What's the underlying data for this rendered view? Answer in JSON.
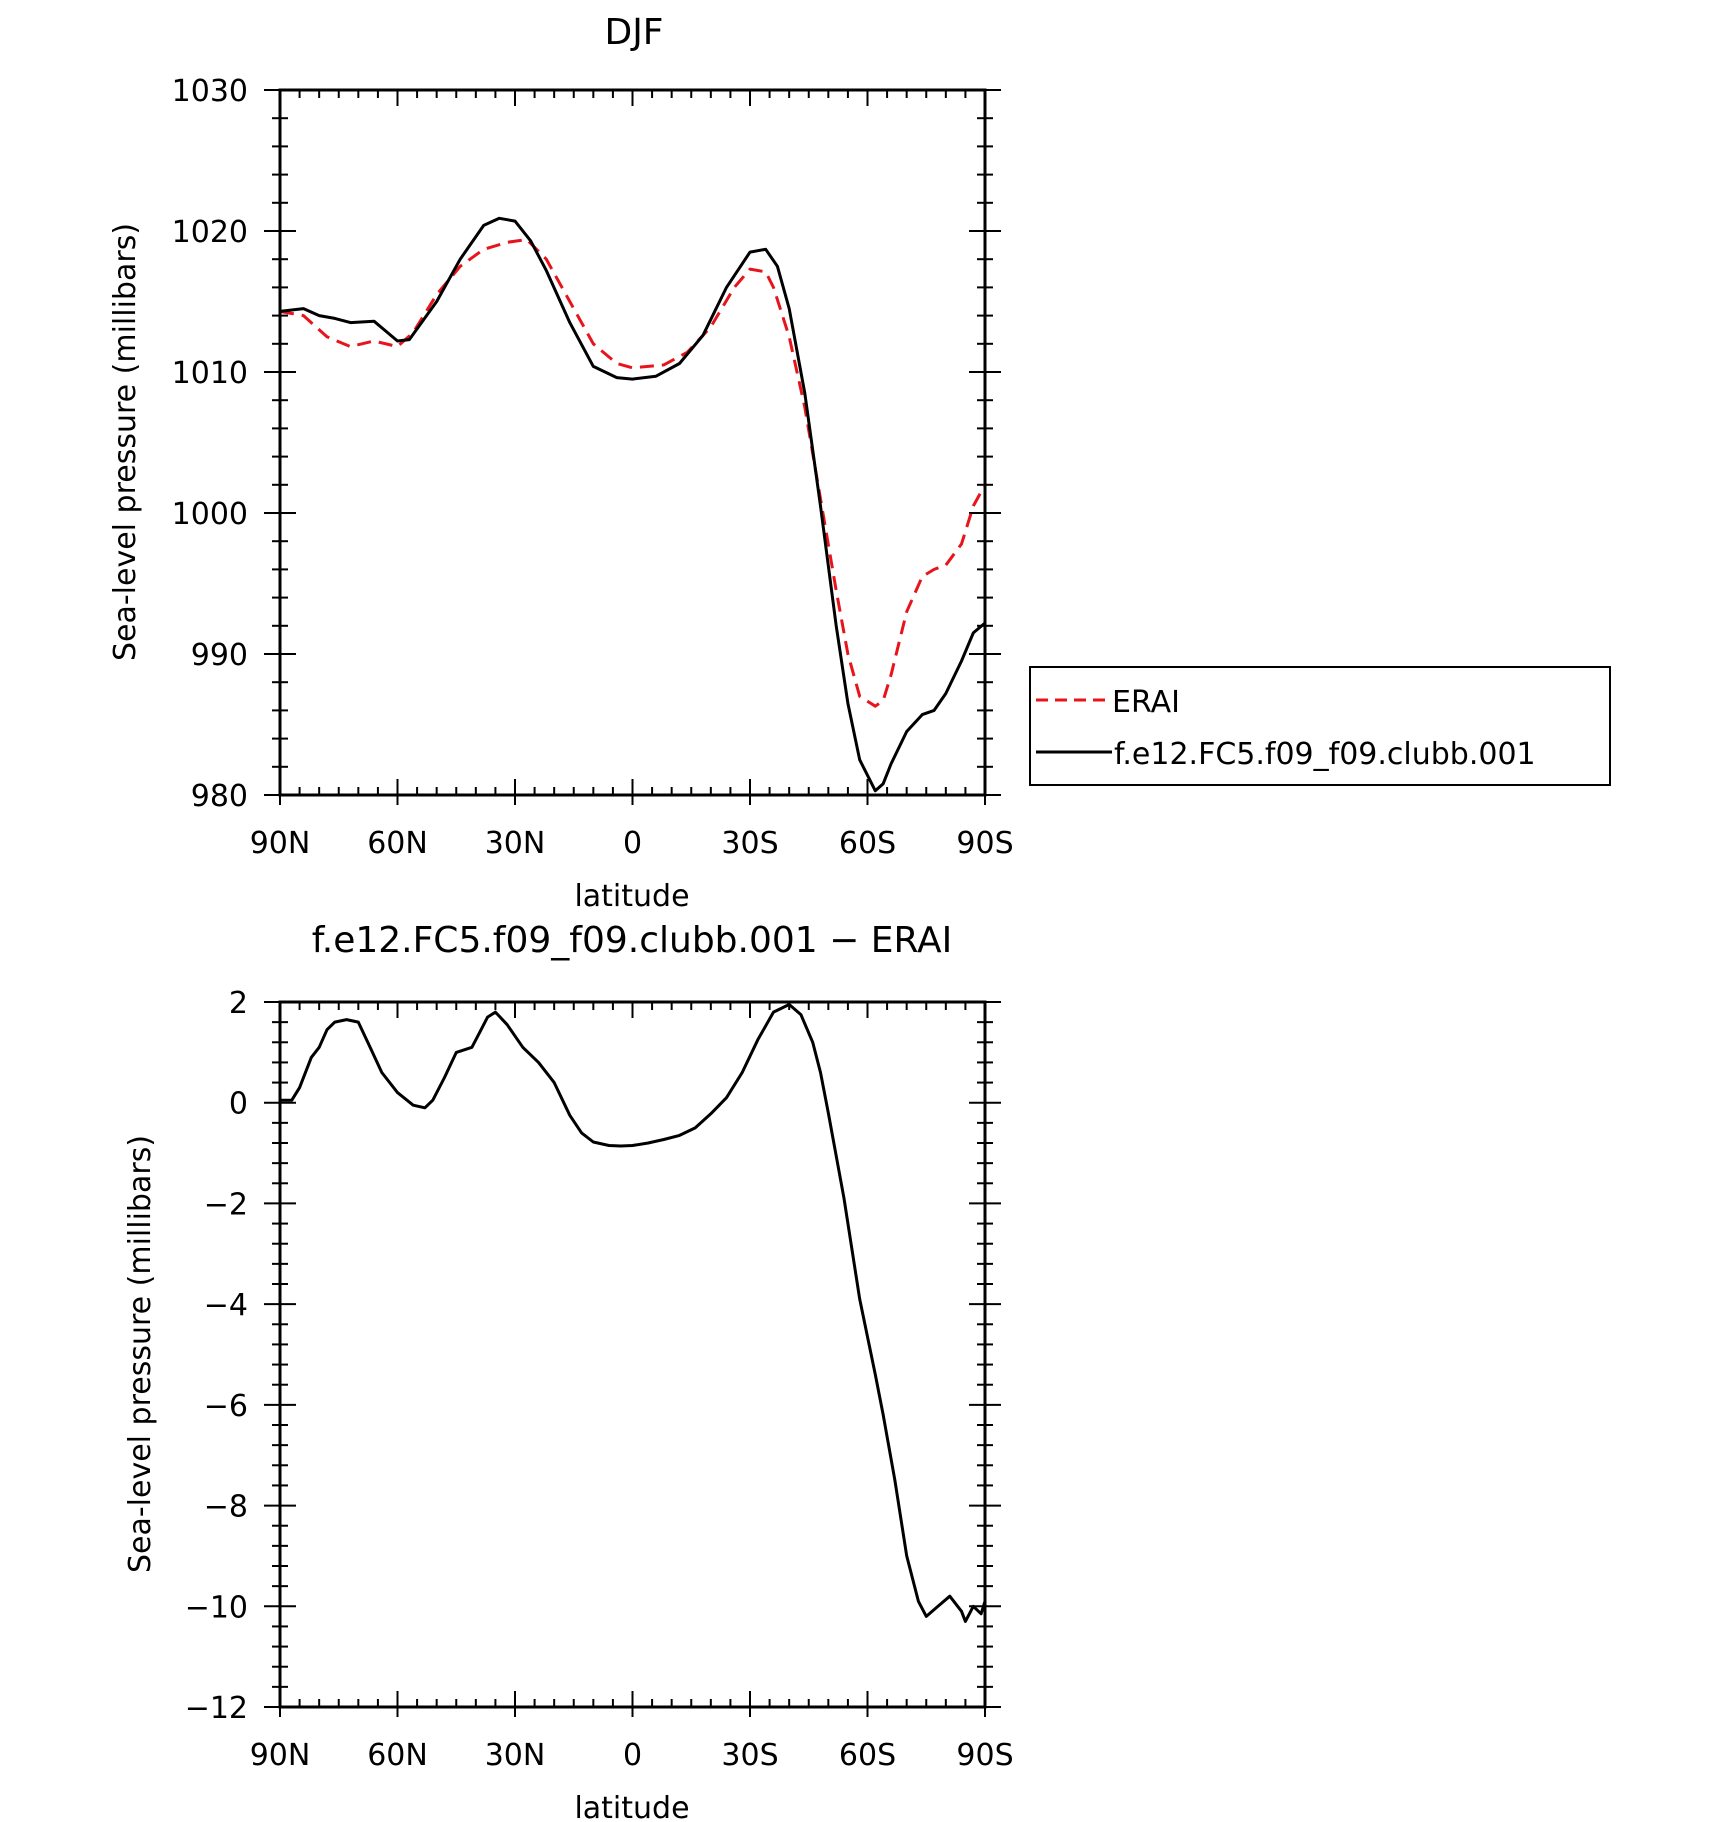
{
  "colors": {
    "erai": "#e8141c",
    "model": "#000000",
    "axes": "#000000"
  },
  "chart_data": [
    {
      "type": "line",
      "title": "DJF",
      "xlabel": "latitude",
      "ylabel": "Sea-level pressure (millibars)",
      "xlim": [
        -90,
        90
      ],
      "ylim": [
        980,
        1030
      ],
      "xticks": [
        -90,
        -60,
        -30,
        0,
        30,
        60,
        90
      ],
      "xtick_labels": [
        "90N",
        "60N",
        "30N",
        "0",
        "30S",
        "60S",
        "90S"
      ],
      "yticks": [
        980,
        990,
        1000,
        1010,
        1020,
        1030
      ],
      "ytick_labels": [
        "980",
        "990",
        "1000",
        "1010",
        "1020",
        "1030"
      ],
      "legend": {
        "placement": "right",
        "entries": [
          "ERAI",
          "f.e12.FC5.f09_f09.clubb.001"
        ]
      },
      "series": [
        {
          "name": "ERAI",
          "style": "dashed",
          "x": [
            -90,
            -84,
            -78,
            -72,
            -66,
            -60,
            -56,
            -50,
            -44,
            -38,
            -32,
            -27,
            -22,
            -16,
            -10,
            -4,
            0,
            8,
            14,
            20,
            26,
            30,
            34,
            36,
            40,
            44,
            48,
            52,
            55,
            58,
            62,
            64,
            66,
            70,
            74,
            77,
            80,
            84,
            87,
            90
          ],
          "y": [
            1014.3,
            1014.0,
            1012.5,
            1011.8,
            1012.2,
            1011.8,
            1012.8,
            1015.5,
            1017.5,
            1018.7,
            1019.2,
            1019.4,
            1018.0,
            1015.0,
            1012.0,
            1010.6,
            1010.3,
            1010.5,
            1011.4,
            1013.2,
            1016.0,
            1017.3,
            1017.1,
            1016.0,
            1012.5,
            1007.5,
            1001.0,
            994.5,
            990.0,
            987.0,
            986.3,
            986.7,
            988.5,
            993.0,
            995.5,
            996.0,
            996.3,
            997.8,
            1000.5,
            1002.0
          ]
        },
        {
          "name": "f.e12.FC5.f09_f09.clubb.001",
          "style": "solid",
          "x": [
            -90,
            -84,
            -80,
            -76,
            -72,
            -66,
            -60,
            -57,
            -50,
            -44,
            -38,
            -34,
            -30,
            -26,
            -22,
            -16,
            -10,
            -4,
            0,
            6,
            12,
            18,
            24,
            30,
            34,
            37,
            40,
            44,
            48,
            52,
            55,
            58,
            62,
            64,
            66,
            70,
            74,
            77,
            80,
            84,
            87,
            90
          ],
          "y": [
            1014.3,
            1014.5,
            1014.0,
            1013.8,
            1013.5,
            1013.6,
            1012.2,
            1012.3,
            1015.0,
            1018.0,
            1020.4,
            1020.9,
            1020.7,
            1019.3,
            1017.2,
            1013.5,
            1010.4,
            1009.6,
            1009.5,
            1009.7,
            1010.6,
            1012.6,
            1016.0,
            1018.5,
            1018.7,
            1017.5,
            1014.5,
            1008.5,
            1000.5,
            992.0,
            986.5,
            982.5,
            980.3,
            980.8,
            982.2,
            984.5,
            985.7,
            986.0,
            987.2,
            989.5,
            991.5,
            992.2
          ]
        }
      ]
    },
    {
      "type": "line",
      "title": "f.e12.FC5.f09_f09.clubb.001 − ERAI",
      "xlabel": "latitude",
      "ylabel": "Sea-level pressure (millibars)",
      "xlim": [
        -90,
        90
      ],
      "ylim": [
        -12,
        2
      ],
      "xticks": [
        -90,
        -60,
        -30,
        0,
        30,
        60,
        90
      ],
      "xtick_labels": [
        "90N",
        "60N",
        "30N",
        "0",
        "30S",
        "60S",
        "90S"
      ],
      "yticks": [
        -12,
        -10,
        -8,
        -6,
        -4,
        -2,
        0,
        2
      ],
      "ytick_labels": [
        "−12",
        "−10",
        "−8",
        "−6",
        "−4",
        "−2",
        "0",
        "2"
      ],
      "series": [
        {
          "style": "solid",
          "x": [
            -90,
            -87,
            -85,
            -82,
            -80,
            -78,
            -76,
            -73,
            -70,
            -67,
            -64,
            -60,
            -56,
            -53,
            -51,
            -48,
            -45,
            -41,
            -39,
            -37,
            -35,
            -32,
            -28,
            -24,
            -20,
            -16,
            -13,
            -10,
            -6,
            -3,
            0,
            4,
            8,
            12,
            16,
            20,
            24,
            28,
            32,
            36,
            40,
            43,
            46,
            48,
            50,
            54,
            58,
            62,
            64,
            67,
            70,
            73,
            75,
            78,
            81,
            84,
            85,
            87,
            89,
            90
          ],
          "y": [
            0.05,
            0.05,
            0.3,
            0.9,
            1.1,
            1.45,
            1.6,
            1.65,
            1.6,
            1.1,
            0.6,
            0.2,
            -0.05,
            -0.1,
            0.05,
            0.5,
            1.0,
            1.1,
            1.4,
            1.7,
            1.8,
            1.55,
            1.1,
            0.8,
            0.4,
            -0.25,
            -0.6,
            -0.78,
            -0.85,
            -0.86,
            -0.85,
            -0.8,
            -0.73,
            -0.65,
            -0.5,
            -0.22,
            0.1,
            0.6,
            1.25,
            1.8,
            1.95,
            1.75,
            1.2,
            0.6,
            -0.2,
            -1.9,
            -3.9,
            -5.4,
            -6.2,
            -7.5,
            -9.0,
            -9.9,
            -10.2,
            -10.0,
            -9.8,
            -10.1,
            -10.3,
            -10.0,
            -10.15,
            -9.9
          ]
        }
      ]
    }
  ]
}
